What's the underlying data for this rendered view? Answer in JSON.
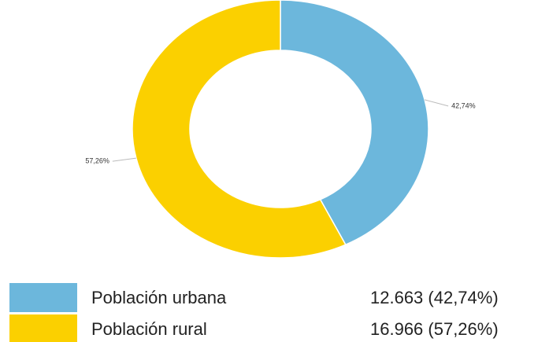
{
  "chart_data": {
    "type": "donut",
    "categories": [
      "Población urbana",
      "Población rural"
    ],
    "values": [
      42.74,
      57.26
    ],
    "value_labels": [
      "42,74%",
      "57,26%"
    ],
    "colors": [
      "#6cb7dc",
      "#fbd000"
    ],
    "legend_labels": [
      "12.663 (42,74%)",
      "16.966 (57,26%)"
    ]
  }
}
